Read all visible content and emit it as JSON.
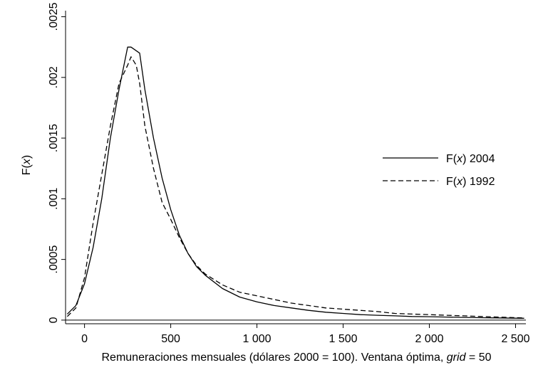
{
  "chart_data": {
    "type": "line",
    "xlabel_main": "Remuneraciones mensuales (dólares 2000 = 100). Ventana óptima, ",
    "xlabel_italic": "grid",
    "xlabel_tail": " = 50",
    "ylabel_pre": "F(",
    "ylabel_var": "x",
    "ylabel_post": ")",
    "xlim": [
      -110,
      2560
    ],
    "ylim": [
      -3e-05,
      0.00255
    ],
    "x_ticks": [
      {
        "value": 0,
        "label": "0"
      },
      {
        "value": 500,
        "label": "500"
      },
      {
        "value": 1000,
        "label": "1 000"
      },
      {
        "value": 1500,
        "label": "1 500"
      },
      {
        "value": 2000,
        "label": "2 000"
      },
      {
        "value": 2500,
        "label": "2 500"
      }
    ],
    "y_ticks": [
      {
        "value": 0,
        "label": "0"
      },
      {
        "value": 0.0005,
        "label": ".0005"
      },
      {
        "value": 0.001,
        "label": ".001"
      },
      {
        "value": 0.0015,
        "label": ".0015"
      },
      {
        "value": 0.002,
        "label": ".002"
      },
      {
        "value": 0.0025,
        "label": ".0025"
      }
    ],
    "series": [
      {
        "legend_pre": "F(",
        "legend_var": "x",
        "legend_post": ") 2004",
        "style": "solid",
        "x": [
          -100,
          -50,
          0,
          50,
          100,
          150,
          200,
          250,
          270,
          320,
          350,
          400,
          450,
          500,
          550,
          600,
          650,
          700,
          800,
          900,
          1000,
          1100,
          1200,
          1300,
          1400,
          1500,
          1600,
          1700,
          1800,
          1900,
          2000,
          2100,
          2200,
          2300,
          2400,
          2500,
          2550
        ],
        "values": [
          5e-05,
          0.00012,
          0.0003,
          0.0006,
          0.001,
          0.0015,
          0.0019,
          0.00225,
          0.00225,
          0.0022,
          0.0019,
          0.0015,
          0.00117,
          0.00091,
          0.0007,
          0.00055,
          0.00044,
          0.00037,
          0.00026,
          0.00019,
          0.00015,
          0.00012,
          0.0001,
          8e-05,
          6.5e-05,
          5.5e-05,
          4.5e-05,
          4e-05,
          3.5e-05,
          3e-05,
          2.8e-05,
          2.5e-05,
          2.2e-05,
          2e-05,
          1.8e-05,
          1.6e-05,
          1.5e-05
        ]
      },
      {
        "legend_pre": "F(",
        "legend_var": "x",
        "legend_post": ") 1992",
        "style": "dashed",
        "x": [
          -100,
          -50,
          0,
          50,
          100,
          150,
          200,
          250,
          270,
          300,
          320,
          350,
          400,
          450,
          500,
          550,
          600,
          650,
          700,
          800,
          900,
          1000,
          1100,
          1200,
          1300,
          1400,
          1500,
          1600,
          1700,
          1800,
          1900,
          2000,
          2100,
          2200,
          2300,
          2400,
          2500,
          2550
        ],
        "values": [
          3e-05,
          0.0001,
          0.00035,
          0.0008,
          0.0012,
          0.0016,
          0.00195,
          0.0021,
          0.00217,
          0.0021,
          0.00195,
          0.0016,
          0.00125,
          0.00097,
          0.00083,
          0.00068,
          0.00055,
          0.00045,
          0.00038,
          0.00029,
          0.00023,
          0.0002,
          0.00017,
          0.00014,
          0.00012,
          0.0001,
          9e-05,
          8e-05,
          7e-05,
          5.5e-05,
          5e-05,
          4.5e-05,
          4e-05,
          3.5e-05,
          3e-05,
          2.5e-05,
          2e-05,
          1.8e-05
        ]
      }
    ],
    "legend_position": "right"
  }
}
